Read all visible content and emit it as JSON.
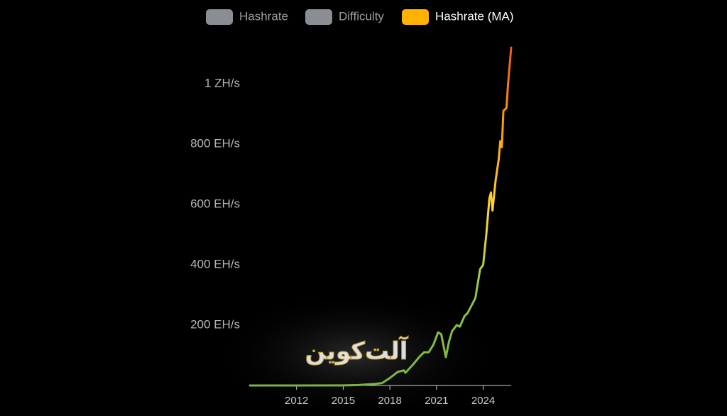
{
  "chart_data": {
    "type": "line",
    "series": [
      {
        "name": "Hashrate",
        "color": "#8a8d93",
        "visible": false
      },
      {
        "name": "Difficulty",
        "color": "#8a8d93",
        "visible": false
      },
      {
        "name": "Hashrate (MA)",
        "color": "#ffb300",
        "visible": true,
        "line_gradient": [
          "#7cb342",
          "#8bc34a",
          "#fdd835",
          "#ffa000",
          "#f4511e"
        ],
        "x": [
          2009.0,
          2012.0,
          2015.0,
          2016.0,
          2017.0,
          2017.5,
          2018.0,
          2018.5,
          2018.9,
          2019.0,
          2019.5,
          2019.9,
          2020.2,
          2020.5,
          2020.8,
          2021.1,
          2021.3,
          2021.6,
          2021.8,
          2022.0,
          2022.3,
          2022.5,
          2022.8,
          2023.0,
          2023.5,
          2023.8,
          2024.0,
          2024.2,
          2024.4,
          2024.5,
          2024.6,
          2024.8,
          2025.0,
          2025.1,
          2025.2,
          2025.3,
          2025.5,
          2025.6,
          2025.8
        ],
        "values": [
          0,
          0.02,
          0.4,
          1.5,
          5,
          8,
          25,
          45,
          50,
          42,
          70,
          95,
          110,
          110,
          135,
          176,
          170,
          94,
          145,
          180,
          200,
          195,
          230,
          240,
          290,
          385,
          400,
          500,
          620,
          640,
          580,
          680,
          750,
          810,
          790,
          910,
          920,
          1000,
          1120
        ]
      }
    ],
    "xlim": [
      2009.0,
      2025.8
    ],
    "xticks": [
      2012,
      2015,
      2018,
      2021,
      2024
    ],
    "ylim": [
      0,
      1140
    ],
    "yticks": [
      {
        "value": 200,
        "label": "200 EH/s"
      },
      {
        "value": 400,
        "label": "400 EH/s"
      },
      {
        "value": 600,
        "label": "600 EH/s"
      },
      {
        "value": 800,
        "label": "800 EH/s"
      },
      {
        "value": 1000,
        "label": "1 ZH/s"
      }
    ],
    "grid": false,
    "legend": "top",
    "watermark": "آلت‌کوین"
  }
}
